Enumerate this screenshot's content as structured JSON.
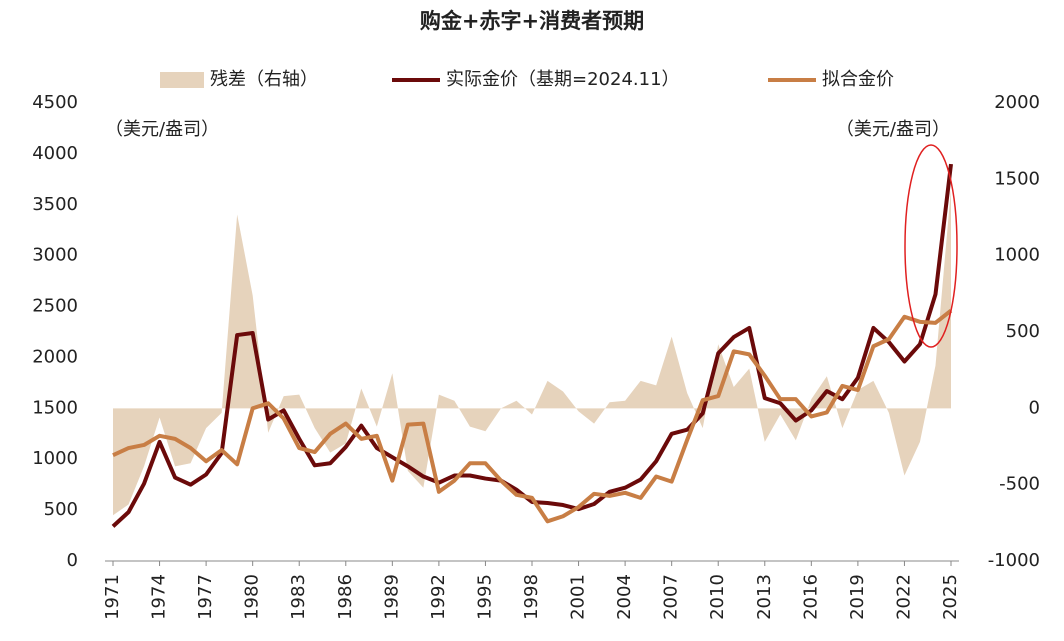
{
  "chart_data": {
    "type": "combo",
    "title": "购金+赤字+消费者预期",
    "y_label": "（美元/盎司）",
    "y2_label": "（美元/盎司）",
    "categories": [
      "1971",
      null,
      null,
      "1974",
      null,
      null,
      "1977",
      null,
      null,
      "1980",
      null,
      null,
      "1983",
      null,
      null,
      "1986",
      null,
      null,
      "1989",
      null,
      null,
      "1992",
      null,
      null,
      "1995",
      null,
      null,
      "1998",
      null,
      null,
      "2001",
      null,
      null,
      "2004",
      null,
      null,
      "2007",
      null,
      null,
      "2010",
      null,
      null,
      "2013",
      null,
      null,
      "2016",
      null,
      null,
      "2019",
      null,
      null,
      "2022",
      null,
      null,
      "2025"
    ],
    "ylim": [
      0,
      4500
    ],
    "yticks": [
      0,
      500,
      1000,
      1500,
      2000,
      2500,
      3000,
      3500,
      4000,
      4500
    ],
    "y2lim": [
      -1000,
      2000
    ],
    "y2ticks": [
      -1000,
      -500,
      0,
      500,
      1000,
      1500,
      2000
    ],
    "series": [
      {
        "name": "残差（右轴）",
        "kind": "area",
        "axis": "y2",
        "color": "#e6d3bc",
        "values": [
          -700,
          -630,
          -380,
          -60,
          -380,
          -360,
          -130,
          -30,
          1270,
          740,
          -160,
          80,
          90,
          -130,
          -290,
          -230,
          130,
          -120,
          230,
          -410,
          -520,
          90,
          50,
          -120,
          -150,
          0,
          50,
          -40,
          180,
          110,
          -20,
          -100,
          40,
          50,
          180,
          150,
          470,
          100,
          -130,
          420,
          140,
          260,
          -220,
          -40,
          -210,
          60,
          210,
          -130,
          120,
          180,
          -30,
          -440,
          -220,
          280,
          1440
        ]
      },
      {
        "name": "实际金价（基期=2024.11）",
        "kind": "line",
        "color": "#6b0a0a",
        "values": [
          340,
          480,
          760,
          1170,
          820,
          750,
          850,
          1060,
          2220,
          2240,
          1390,
          1480,
          1200,
          940,
          960,
          1120,
          1330,
          1110,
          1020,
          930,
          830,
          770,
          840,
          840,
          810,
          790,
          700,
          580,
          570,
          550,
          510,
          560,
          680,
          720,
          800,
          980,
          1250,
          1290,
          1450,
          2040,
          2200,
          2290,
          1600,
          1550,
          1380,
          1480,
          1670,
          1590,
          1800,
          2290,
          2150,
          1960,
          2130,
          2620,
          3900
        ]
      },
      {
        "name": "拟合金价",
        "kind": "line",
        "color": "#c87e45",
        "values": [
          1040,
          1110,
          1140,
          1230,
          1200,
          1110,
          980,
          1090,
          950,
          1500,
          1550,
          1400,
          1110,
          1070,
          1250,
          1350,
          1200,
          1230,
          790,
          1340,
          1350,
          680,
          790,
          960,
          960,
          790,
          650,
          620,
          390,
          440,
          530,
          660,
          640,
          670,
          620,
          830,
          780,
          1190,
          1580,
          1620,
          2060,
          2030,
          1820,
          1590,
          1590,
          1420,
          1460,
          1720,
          1680,
          2110,
          2180,
          2400,
          2350,
          2340,
          2460
        ]
      }
    ]
  }
}
